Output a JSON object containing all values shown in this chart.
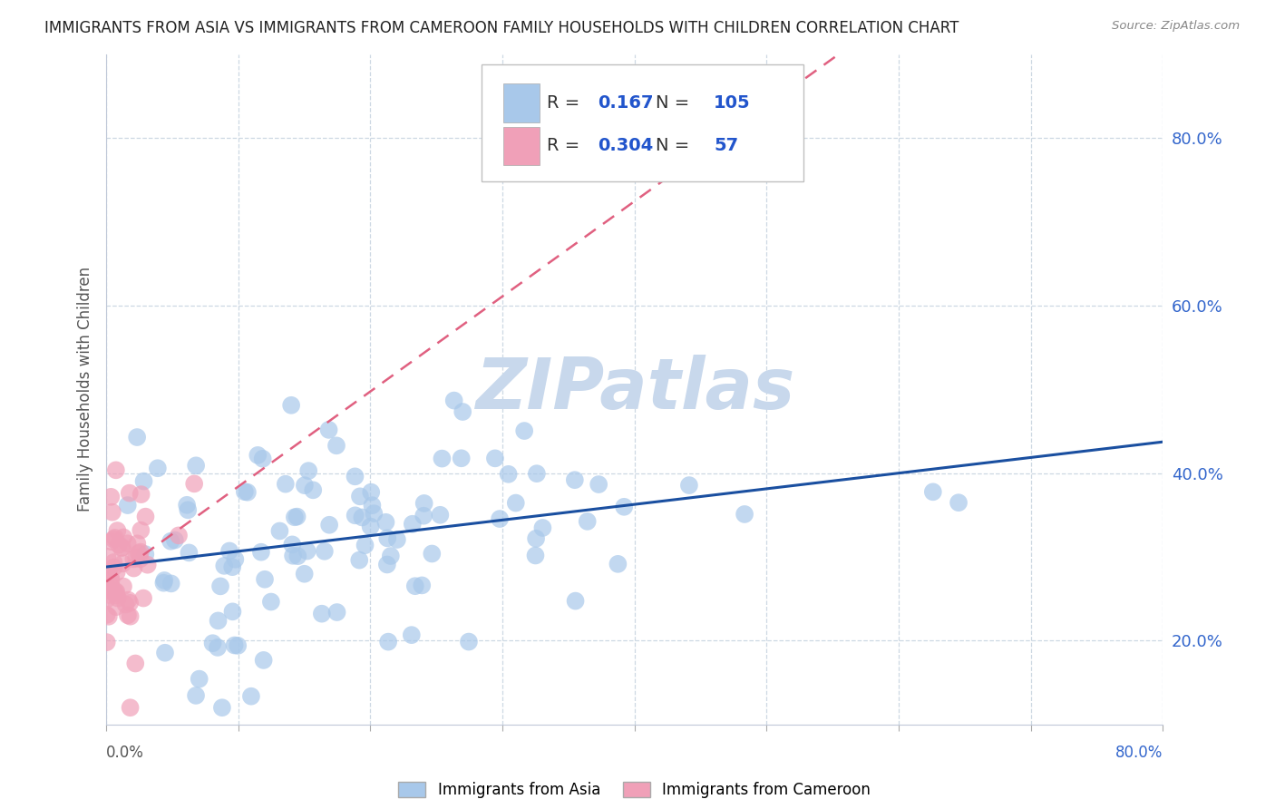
{
  "title": "IMMIGRANTS FROM ASIA VS IMMIGRANTS FROM CAMEROON FAMILY HOUSEHOLDS WITH CHILDREN CORRELATION CHART",
  "source": "Source: ZipAtlas.com",
  "ylabel": "Family Households with Children",
  "xlim": [
    0.0,
    0.8
  ],
  "ylim": [
    0.1,
    0.9
  ],
  "xticks": [
    0.0,
    0.1,
    0.2,
    0.3,
    0.4,
    0.5,
    0.6,
    0.7,
    0.8
  ],
  "ytick_positions": [
    0.2,
    0.4,
    0.6,
    0.8
  ],
  "ytick_labels": [
    "20.0%",
    "40.0%",
    "60.0%",
    "80.0%"
  ],
  "R_asia": 0.167,
  "N_asia": 105,
  "R_cameroon": 0.304,
  "N_cameroon": 57,
  "color_asia": "#a8c8ea",
  "color_cameroon": "#f0a0b8",
  "line_color_asia": "#1a4fa0",
  "line_color_cameroon": "#e06080",
  "watermark": "ZIPatlas",
  "watermark_color": "#c8d8ec",
  "background_color": "#ffffff",
  "seed_asia": 42,
  "seed_cameroon": 7
}
